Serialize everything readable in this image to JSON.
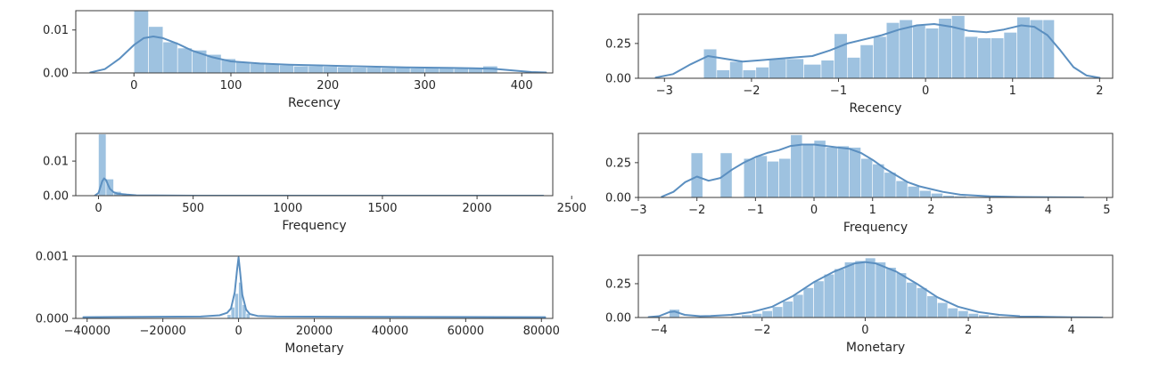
{
  "figure": {
    "bar_color": "#9ec2e0",
    "line_color": "#5b8fc0",
    "frame_color": "#3a3a3a",
    "text_color": "#262626"
  },
  "chart_data": [
    {
      "type": "histogram",
      "title": "",
      "xlabel": "Recency",
      "ylabel": "",
      "xlim": [
        -60,
        432
      ],
      "ylim": [
        0,
        0.0145
      ],
      "xticks": [
        0,
        100,
        200,
        300,
        400
      ],
      "xtick_labels": [
        "0",
        "100",
        "200",
        "300",
        "400"
      ],
      "yticks": [
        0,
        0.01
      ],
      "ytick_labels": [
        "0.00",
        "0.01"
      ],
      "bins": [
        {
          "x0": 0,
          "x1": 15,
          "y": 0.0145
        },
        {
          "x0": 15,
          "x1": 30,
          "y": 0.0108
        },
        {
          "x0": 30,
          "x1": 45,
          "y": 0.0072
        },
        {
          "x0": 45,
          "x1": 60,
          "y": 0.0058
        },
        {
          "x0": 60,
          "x1": 75,
          "y": 0.0053
        },
        {
          "x0": 75,
          "x1": 90,
          "y": 0.0043
        },
        {
          "x0": 90,
          "x1": 105,
          "y": 0.0033
        },
        {
          "x0": 105,
          "x1": 120,
          "y": 0.0025
        },
        {
          "x0": 120,
          "x1": 135,
          "y": 0.0022
        },
        {
          "x0": 135,
          "x1": 150,
          "y": 0.002
        },
        {
          "x0": 150,
          "x1": 165,
          "y": 0.0018
        },
        {
          "x0": 165,
          "x1": 180,
          "y": 0.0016
        },
        {
          "x0": 180,
          "x1": 195,
          "y": 0.0016
        },
        {
          "x0": 195,
          "x1": 210,
          "y": 0.0015
        },
        {
          "x0": 210,
          "x1": 225,
          "y": 0.0014
        },
        {
          "x0": 225,
          "x1": 240,
          "y": 0.0013
        },
        {
          "x0": 240,
          "x1": 255,
          "y": 0.0013
        },
        {
          "x0": 255,
          "x1": 270,
          "y": 0.0012
        },
        {
          "x0": 270,
          "x1": 285,
          "y": 0.0012
        },
        {
          "x0": 285,
          "x1": 300,
          "y": 0.0011
        },
        {
          "x0": 300,
          "x1": 315,
          "y": 0.0011
        },
        {
          "x0": 315,
          "x1": 330,
          "y": 0.0011
        },
        {
          "x0": 330,
          "x1": 345,
          "y": 0.001
        },
        {
          "x0": 345,
          "x1": 360,
          "y": 0.001
        },
        {
          "x0": 360,
          "x1": 375,
          "y": 0.0016
        }
      ],
      "kde": {
        "x": [
          -45,
          -30,
          -15,
          0,
          10,
          20,
          30,
          45,
          60,
          80,
          100,
          130,
          160,
          200,
          240,
          280,
          320,
          350,
          370,
          390,
          410,
          425
        ],
        "y": [
          0.0001,
          0.0009,
          0.0033,
          0.0065,
          0.0081,
          0.0085,
          0.0081,
          0.0068,
          0.0052,
          0.0037,
          0.0027,
          0.0022,
          0.0019,
          0.0017,
          0.0015,
          0.0013,
          0.0012,
          0.0011,
          0.001,
          0.0006,
          0.0002,
          0.0001
        ]
      }
    },
    {
      "type": "histogram",
      "title": "",
      "xlabel": "Frequency",
      "ylabel": "",
      "xlim": [
        -120,
        2400
      ],
      "ylim": [
        0,
        0.018
      ],
      "xticks": [
        0,
        500,
        1000,
        1500,
        2000,
        2500
      ],
      "xtick_labels": [
        "0",
        "500",
        "1000",
        "1500",
        "2000",
        "2500"
      ],
      "yticks": [
        0,
        0.01
      ],
      "ytick_labels": [
        "0.00",
        "0.01"
      ],
      "bins": [
        {
          "x0": 0,
          "x1": 40,
          "y": 0.0178
        },
        {
          "x0": 40,
          "x1": 80,
          "y": 0.0048
        },
        {
          "x0": 80,
          "x1": 120,
          "y": 0.0012
        },
        {
          "x0": 120,
          "x1": 160,
          "y": 0.0005
        },
        {
          "x0": 160,
          "x1": 200,
          "y": 0.0002
        }
      ],
      "kde": {
        "x": [
          -20,
          0,
          10,
          20,
          30,
          40,
          50,
          60,
          80,
          100,
          150,
          200,
          300,
          500,
          1000,
          1500,
          2000,
          2350
        ],
        "y": [
          0.0,
          0.0008,
          0.0025,
          0.0042,
          0.005,
          0.0045,
          0.0032,
          0.002,
          0.001,
          0.0006,
          0.0003,
          0.0001,
          5e-05,
          0.0,
          0.0,
          0.0,
          0.0,
          0.0
        ]
      }
    },
    {
      "type": "histogram",
      "title": "",
      "xlabel": "Monetary",
      "ylabel": "",
      "xlim": [
        -43000,
        83000
      ],
      "ylim": [
        0,
        0.001
      ],
      "xticks": [
        -40000,
        -20000,
        0,
        20000,
        40000,
        60000,
        80000
      ],
      "xtick_labels": [
        "−40000",
        "−20000",
        "0",
        "20000",
        "40000",
        "60000",
        "80000"
      ],
      "yticks": [
        0,
        0.001
      ],
      "ytick_labels": [
        "0.000",
        "0.001"
      ],
      "bins": [
        {
          "x0": -3000,
          "x1": -2000,
          "y": 6e-05
        },
        {
          "x0": -2000,
          "x1": -1000,
          "y": 0.00018
        },
        {
          "x0": -1000,
          "x1": 0,
          "y": 0.0004
        },
        {
          "x0": 0,
          "x1": 1000,
          "y": 0.00058
        },
        {
          "x0": 1000,
          "x1": 2000,
          "y": 0.00022
        },
        {
          "x0": 2000,
          "x1": 3000,
          "y": 8e-05
        }
      ],
      "kde": {
        "x": [
          -41000,
          -10000,
          -5000,
          -3000,
          -2000,
          -1000,
          -400,
          0,
          400,
          1000,
          2000,
          3000,
          5000,
          10000,
          81000
        ],
        "y": [
          2e-05,
          3e-05,
          5e-05,
          9e-05,
          0.00016,
          0.00042,
          0.00078,
          0.00098,
          0.00075,
          0.00038,
          0.00014,
          7e-05,
          4e-05,
          3e-05,
          2e-05
        ]
      }
    },
    {
      "type": "histogram",
      "title": "",
      "xlabel": "Recency",
      "ylabel": "",
      "xlim": [
        -3.3,
        2.15
      ],
      "ylim": [
        0,
        0.46
      ],
      "xticks": [
        -3,
        -2,
        -1,
        0,
        1,
        2
      ],
      "xtick_labels": [
        "−3",
        "−2",
        "−1",
        "0",
        "1",
        "2"
      ],
      "yticks": [
        0,
        0.25
      ],
      "ytick_labels": [
        "0.00",
        "0.25"
      ],
      "bins": [
        {
          "x0": -2.55,
          "x1": -2.4,
          "y": 0.21
        },
        {
          "x0": -2.4,
          "x1": -2.25,
          "y": 0.06
        },
        {
          "x0": -2.25,
          "x1": -2.1,
          "y": 0.12
        },
        {
          "x0": -2.1,
          "x1": -1.95,
          "y": 0.06
        },
        {
          "x0": -1.95,
          "x1": -1.8,
          "y": 0.08
        },
        {
          "x0": -1.8,
          "x1": -1.6,
          "y": 0.14
        },
        {
          "x0": -1.6,
          "x1": -1.4,
          "y": 0.14
        },
        {
          "x0": -1.4,
          "x1": -1.2,
          "y": 0.1
        },
        {
          "x0": -1.2,
          "x1": -1.05,
          "y": 0.13
        },
        {
          "x0": -1.05,
          "x1": -0.9,
          "y": 0.32
        },
        {
          "x0": -0.9,
          "x1": -0.75,
          "y": 0.15
        },
        {
          "x0": -0.75,
          "x1": -0.6,
          "y": 0.24
        },
        {
          "x0": -0.6,
          "x1": -0.45,
          "y": 0.3
        },
        {
          "x0": -0.45,
          "x1": -0.3,
          "y": 0.4
        },
        {
          "x0": -0.3,
          "x1": -0.15,
          "y": 0.42
        },
        {
          "x0": -0.15,
          "x1": 0.0,
          "y": 0.38
        },
        {
          "x0": 0.0,
          "x1": 0.15,
          "y": 0.36
        },
        {
          "x0": 0.15,
          "x1": 0.3,
          "y": 0.43
        },
        {
          "x0": 0.3,
          "x1": 0.45,
          "y": 0.45
        },
        {
          "x0": 0.45,
          "x1": 0.6,
          "y": 0.3
        },
        {
          "x0": 0.6,
          "x1": 0.75,
          "y": 0.29
        },
        {
          "x0": 0.75,
          "x1": 0.9,
          "y": 0.29
        },
        {
          "x0": 0.9,
          "x1": 1.05,
          "y": 0.33
        },
        {
          "x0": 1.05,
          "x1": 1.2,
          "y": 0.44
        },
        {
          "x0": 1.2,
          "x1": 1.35,
          "y": 0.42
        },
        {
          "x0": 1.35,
          "x1": 1.48,
          "y": 0.42
        }
      ],
      "kde": {
        "x": [
          -3.1,
          -2.9,
          -2.7,
          -2.5,
          -2.3,
          -2.1,
          -1.9,
          -1.7,
          -1.5,
          -1.3,
          -1.1,
          -0.9,
          -0.7,
          -0.5,
          -0.3,
          -0.1,
          0.1,
          0.3,
          0.5,
          0.7,
          0.9,
          1.1,
          1.25,
          1.4,
          1.55,
          1.7,
          1.85,
          2.0
        ],
        "y": [
          0.005,
          0.03,
          0.1,
          0.16,
          0.14,
          0.12,
          0.13,
          0.14,
          0.15,
          0.16,
          0.2,
          0.25,
          0.28,
          0.31,
          0.35,
          0.38,
          0.39,
          0.37,
          0.34,
          0.33,
          0.35,
          0.38,
          0.37,
          0.31,
          0.2,
          0.08,
          0.02,
          0.003
        ]
      }
    },
    {
      "type": "histogram",
      "title": "",
      "xlabel": "Frequency",
      "ylabel": "",
      "xlim": [
        -3.0,
        5.1
      ],
      "ylim": [
        0,
        0.46
      ],
      "xticks": [
        -3,
        -2,
        -1,
        0,
        1,
        2,
        3,
        4,
        5
      ],
      "xtick_labels": [
        "−3",
        "−2",
        "−1",
        "0",
        "1",
        "2",
        "3",
        "4",
        "5"
      ],
      "yticks": [
        0,
        0.25
      ],
      "ytick_labels": [
        "0.00",
        "0.25"
      ],
      "bins": [
        {
          "x0": -2.1,
          "x1": -1.9,
          "y": 0.32
        },
        {
          "x0": -1.6,
          "x1": -1.4,
          "y": 0.32
        },
        {
          "x0": -1.2,
          "x1": -1.0,
          "y": 0.28
        },
        {
          "x0": -1.0,
          "x1": -0.8,
          "y": 0.3
        },
        {
          "x0": -0.8,
          "x1": -0.6,
          "y": 0.26
        },
        {
          "x0": -0.6,
          "x1": -0.4,
          "y": 0.28
        },
        {
          "x0": -0.4,
          "x1": -0.2,
          "y": 0.45
        },
        {
          "x0": -0.2,
          "x1": 0.0,
          "y": 0.38
        },
        {
          "x0": 0.0,
          "x1": 0.2,
          "y": 0.41
        },
        {
          "x0": 0.2,
          "x1": 0.4,
          "y": 0.36
        },
        {
          "x0": 0.4,
          "x1": 0.6,
          "y": 0.37
        },
        {
          "x0": 0.6,
          "x1": 0.8,
          "y": 0.36
        },
        {
          "x0": 0.8,
          "x1": 1.0,
          "y": 0.28
        },
        {
          "x0": 1.0,
          "x1": 1.2,
          "y": 0.24
        },
        {
          "x0": 1.2,
          "x1": 1.4,
          "y": 0.18
        },
        {
          "x0": 1.4,
          "x1": 1.6,
          "y": 0.12
        },
        {
          "x0": 1.6,
          "x1": 1.8,
          "y": 0.08
        },
        {
          "x0": 1.8,
          "x1": 2.0,
          "y": 0.05
        },
        {
          "x0": 2.0,
          "x1": 2.2,
          "y": 0.03
        },
        {
          "x0": 2.2,
          "x1": 2.4,
          "y": 0.015
        },
        {
          "x0": 2.4,
          "x1": 2.6,
          "y": 0.01
        }
      ],
      "kde": {
        "x": [
          -2.6,
          -2.4,
          -2.2,
          -2.0,
          -1.8,
          -1.6,
          -1.4,
          -1.2,
          -1.0,
          -0.8,
          -0.6,
          -0.4,
          -0.2,
          0.0,
          0.2,
          0.4,
          0.6,
          0.8,
          1.0,
          1.2,
          1.4,
          1.6,
          1.8,
          2.0,
          2.2,
          2.5,
          3.0,
          3.5,
          4.0,
          4.6
        ],
        "y": [
          0.005,
          0.04,
          0.11,
          0.15,
          0.12,
          0.14,
          0.2,
          0.25,
          0.29,
          0.32,
          0.34,
          0.37,
          0.38,
          0.38,
          0.37,
          0.36,
          0.35,
          0.32,
          0.27,
          0.21,
          0.16,
          0.11,
          0.08,
          0.06,
          0.04,
          0.02,
          0.008,
          0.003,
          0.001,
          0.0
        ]
      }
    },
    {
      "type": "histogram",
      "title": "",
      "xlabel": "Monetary",
      "ylabel": "",
      "xlim": [
        -4.4,
        4.8
      ],
      "ylim": [
        0,
        0.46
      ],
      "xticks": [
        -4,
        -2,
        0,
        2,
        4
      ],
      "xtick_labels": [
        "−4",
        "−2",
        "0",
        "2",
        "4"
      ],
      "yticks": [
        0,
        0.25
      ],
      "ytick_labels": [
        "0.00",
        "0.25"
      ],
      "bins": [
        {
          "x0": -3.8,
          "x1": -3.6,
          "y": 0.06
        },
        {
          "x0": -2.6,
          "x1": -2.4,
          "y": 0.01
        },
        {
          "x0": -2.4,
          "x1": -2.2,
          "y": 0.02
        },
        {
          "x0": -2.2,
          "x1": -2.0,
          "y": 0.03
        },
        {
          "x0": -2.0,
          "x1": -1.8,
          "y": 0.05
        },
        {
          "x0": -1.8,
          "x1": -1.6,
          "y": 0.08
        },
        {
          "x0": -1.6,
          "x1": -1.4,
          "y": 0.12
        },
        {
          "x0": -1.4,
          "x1": -1.2,
          "y": 0.17
        },
        {
          "x0": -1.2,
          "x1": -1.0,
          "y": 0.22
        },
        {
          "x0": -1.0,
          "x1": -0.8,
          "y": 0.27
        },
        {
          "x0": -0.8,
          "x1": -0.6,
          "y": 0.32
        },
        {
          "x0": -0.6,
          "x1": -0.4,
          "y": 0.36
        },
        {
          "x0": -0.4,
          "x1": -0.2,
          "y": 0.41
        },
        {
          "x0": -0.2,
          "x1": 0.0,
          "y": 0.42
        },
        {
          "x0": 0.0,
          "x1": 0.2,
          "y": 0.44
        },
        {
          "x0": 0.2,
          "x1": 0.4,
          "y": 0.41
        },
        {
          "x0": 0.4,
          "x1": 0.6,
          "y": 0.37
        },
        {
          "x0": 0.6,
          "x1": 0.8,
          "y": 0.33
        },
        {
          "x0": 0.8,
          "x1": 1.0,
          "y": 0.26
        },
        {
          "x0": 1.0,
          "x1": 1.2,
          "y": 0.22
        },
        {
          "x0": 1.2,
          "x1": 1.4,
          "y": 0.16
        },
        {
          "x0": 1.4,
          "x1": 1.6,
          "y": 0.11
        },
        {
          "x0": 1.6,
          "x1": 1.8,
          "y": 0.07
        },
        {
          "x0": 1.8,
          "x1": 2.0,
          "y": 0.05
        },
        {
          "x0": 2.0,
          "x1": 2.2,
          "y": 0.03
        },
        {
          "x0": 2.2,
          "x1": 2.4,
          "y": 0.02
        },
        {
          "x0": 2.4,
          "x1": 2.6,
          "y": 0.01
        }
      ],
      "kde": {
        "x": [
          -4.2,
          -4.0,
          -3.8,
          -3.7,
          -3.5,
          -3.2,
          -3.0,
          -2.6,
          -2.2,
          -1.8,
          -1.4,
          -1.0,
          -0.6,
          -0.2,
          0.0,
          0.2,
          0.6,
          1.0,
          1.4,
          1.8,
          2.2,
          2.6,
          3.0,
          3.5,
          4.0,
          4.6
        ],
        "y": [
          0.003,
          0.01,
          0.04,
          0.045,
          0.02,
          0.01,
          0.012,
          0.02,
          0.04,
          0.08,
          0.16,
          0.26,
          0.34,
          0.4,
          0.41,
          0.4,
          0.34,
          0.25,
          0.15,
          0.08,
          0.04,
          0.02,
          0.01,
          0.005,
          0.002,
          0.0
        ]
      }
    }
  ]
}
